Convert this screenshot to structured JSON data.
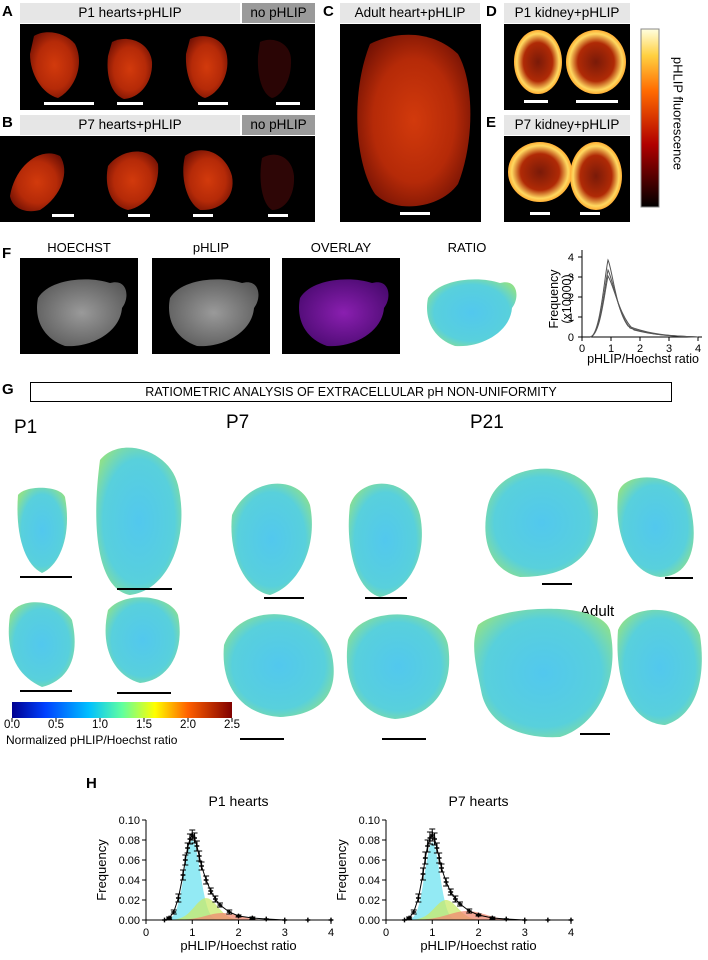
{
  "panels": {
    "A": "A",
    "B": "B",
    "C": "C",
    "D": "D",
    "E": "E",
    "F": "F",
    "G": "G",
    "H": "H"
  },
  "banners": {
    "a_main": "P1 hearts+pHLIP",
    "a_neg": "no pHLIP",
    "b_main": "P7 hearts+pHLIP",
    "b_neg": "no pHLIP",
    "c": "Adult heart+pHLIP",
    "d": "P1 kidney+pHLIP",
    "e": "P7 kidney+pHLIP"
  },
  "colorbar_right_label": "pHLIP fluorescence",
  "f_titles": [
    "HOECHST",
    "pHLIP",
    "OVERLAY",
    "RATIO"
  ],
  "f_hist": {
    "ylabel": "Frequency",
    "ylabel2": "(x10000)",
    "xlabel": "pHLIP/Hoechst ratio",
    "yticks": [
      "0",
      "1",
      "2",
      "3",
      "4"
    ],
    "xticks": [
      "0",
      "1",
      "2",
      "3",
      "4"
    ]
  },
  "g_header": "RATIOMETRIC ANALYSIS OF EXTRACELLULAR pH NON-UNIFORMITY",
  "g_ages": {
    "p1": "P1",
    "p7": "P7",
    "p21": "P21",
    "adult": "Adult"
  },
  "g_colorbar": {
    "ticks": [
      "0.0",
      "0.5",
      "1.0",
      "1.5",
      "2.0",
      "2.5"
    ],
    "label": "Normalized pHLIP/Hoechst ratio"
  },
  "colors": {
    "hot_low": "#1a0000",
    "hot_mid": "#d43a00",
    "hot_high": "#fff6c8",
    "jet_low": "#00008f",
    "jet_mid": "#4fd0e0",
    "jet_high": "#800000"
  },
  "chart_data": [
    {
      "type": "area",
      "title": "P1 hearts",
      "xlabel": "pHLIP/Hoechst ratio",
      "ylabel": "Frequency",
      "xlim": [
        0,
        4
      ],
      "ylim": [
        0,
        0.1
      ],
      "x_ticks": [
        "0",
        "1",
        "2",
        "3",
        "4"
      ],
      "y_ticks": [
        "0.00",
        "0.02",
        "0.04",
        "0.06",
        "0.08",
        "0.10"
      ],
      "x": [
        0.4,
        0.5,
        0.6,
        0.7,
        0.8,
        0.85,
        0.9,
        0.95,
        1.0,
        1.05,
        1.1,
        1.15,
        1.2,
        1.3,
        1.4,
        1.5,
        1.6,
        1.8,
        2.0,
        2.3,
        2.6,
        3.0,
        3.5,
        4.0
      ],
      "mean": [
        0.0,
        0.002,
        0.008,
        0.022,
        0.045,
        0.06,
        0.072,
        0.081,
        0.085,
        0.082,
        0.074,
        0.064,
        0.054,
        0.04,
        0.029,
        0.021,
        0.015,
        0.008,
        0.004,
        0.002,
        0.001,
        0.0,
        0.0,
        0.0
      ],
      "error": [
        0.0,
        0.001,
        0.002,
        0.004,
        0.005,
        0.005,
        0.005,
        0.005,
        0.005,
        0.005,
        0.005,
        0.005,
        0.004,
        0.004,
        0.003,
        0.003,
        0.002,
        0.002,
        0.001,
        0.001,
        0.0,
        0.0,
        0.0,
        0.0
      ],
      "components": [
        {
          "color": "#6fe3f0",
          "center": 1.0,
          "width": 0.17,
          "height": 0.08
        },
        {
          "color": "#c8ea6a",
          "center": 1.3,
          "width": 0.25,
          "height": 0.022
        },
        {
          "color": "#f08870",
          "center": 1.65,
          "width": 0.35,
          "height": 0.007
        }
      ]
    },
    {
      "type": "area",
      "title": "P7 hearts",
      "xlabel": "pHLIP/Hoechst ratio",
      "ylabel": "Frequency",
      "xlim": [
        0,
        4
      ],
      "ylim": [
        0,
        0.1
      ],
      "x_ticks": [
        "0",
        "1",
        "2",
        "3",
        "4"
      ],
      "y_ticks": [
        "0.00",
        "0.02",
        "0.04",
        "0.06",
        "0.08",
        "0.10"
      ],
      "x": [
        0.4,
        0.5,
        0.6,
        0.7,
        0.8,
        0.85,
        0.9,
        0.95,
        1.0,
        1.05,
        1.1,
        1.15,
        1.2,
        1.3,
        1.4,
        1.5,
        1.6,
        1.8,
        2.0,
        2.3,
        2.6,
        3.0,
        3.5,
        4.0
      ],
      "mean": [
        0.0,
        0.002,
        0.008,
        0.022,
        0.046,
        0.062,
        0.074,
        0.082,
        0.085,
        0.081,
        0.072,
        0.062,
        0.052,
        0.038,
        0.028,
        0.021,
        0.016,
        0.009,
        0.005,
        0.002,
        0.001,
        0.0,
        0.0,
        0.0
      ],
      "error": [
        0.0,
        0.001,
        0.002,
        0.004,
        0.006,
        0.006,
        0.006,
        0.006,
        0.006,
        0.006,
        0.005,
        0.005,
        0.004,
        0.004,
        0.003,
        0.003,
        0.002,
        0.002,
        0.001,
        0.001,
        0.0,
        0.0,
        0.0,
        0.0
      ],
      "components": [
        {
          "color": "#6fe3f0",
          "center": 1.0,
          "width": 0.16,
          "height": 0.078
        },
        {
          "color": "#c8ea6a",
          "center": 1.3,
          "width": 0.25,
          "height": 0.02
        },
        {
          "color": "#f08870",
          "center": 1.75,
          "width": 0.4,
          "height": 0.009
        }
      ]
    }
  ]
}
